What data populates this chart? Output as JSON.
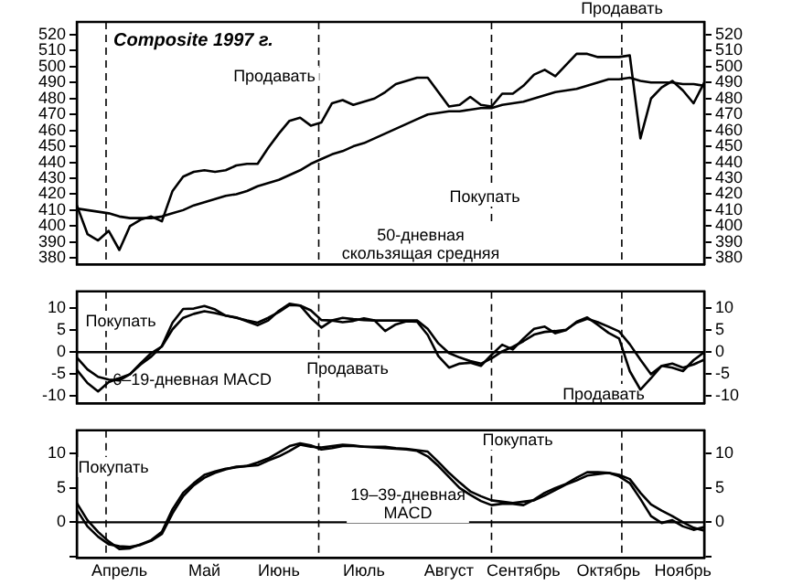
{
  "chart_data": [
    {
      "type": "line",
      "title": "Composite 1997 г.",
      "categories": [
        null,
        null,
        null,
        null,
        null,
        null,
        null,
        null,
        null,
        null,
        null,
        null,
        null,
        null,
        null,
        null,
        null,
        null,
        null,
        null,
        null,
        null,
        null,
        null,
        null,
        null,
        null,
        null,
        null,
        null,
        null,
        null,
        null,
        null,
        null,
        null,
        null,
        null,
        null,
        null,
        null,
        null,
        null,
        null,
        null,
        null,
        null,
        null,
        null,
        null,
        null,
        null,
        null,
        null,
        null,
        null,
        null,
        null,
        null,
        null
      ],
      "series": [
        {
          "color": "#000000",
          "values": [
            413,
            395,
            391,
            397,
            385,
            400,
            404,
            406,
            403,
            422,
            431,
            434,
            435,
            434,
            435,
            438,
            439,
            439,
            449,
            458,
            466,
            468,
            463,
            465,
            477,
            479,
            476,
            478,
            480,
            484,
            489,
            491,
            493,
            493,
            484,
            475,
            476,
            481,
            476,
            475,
            483,
            483,
            488,
            495,
            498,
            494,
            501,
            508,
            508,
            506,
            506,
            506,
            507,
            455,
            480,
            487,
            491,
            485,
            477,
            490
          ]
        },
        {
          "color": "#000000",
          "values": [
            411,
            410,
            409,
            408,
            406,
            405,
            405,
            405,
            406,
            408,
            410,
            413,
            415,
            417,
            419,
            420,
            422,
            425,
            427,
            429,
            432,
            435,
            439,
            442,
            445,
            447,
            450,
            452,
            455,
            458,
            461,
            464,
            467,
            470,
            471,
            472,
            472,
            473,
            474,
            474,
            476,
            477,
            478,
            480,
            482,
            484,
            485,
            486,
            488,
            490,
            492,
            492,
            493,
            491,
            490,
            490,
            490,
            489,
            489,
            488
          ]
        }
      ],
      "ylim": [
        376,
        528
      ],
      "yticks": [
        380,
        390,
        400,
        410,
        420,
        430,
        440,
        450,
        460,
        470,
        480,
        490,
        500,
        510,
        520
      ],
      "y2lim": [
        376,
        528
      ],
      "y2ticks": [
        380,
        390,
        400,
        410,
        420,
        430,
        440,
        450,
        460,
        470,
        480,
        490,
        500,
        510,
        520
      ],
      "tick_labels": "y",
      "legend": false,
      "grid": false,
      "annotations": [
        "Продавать",
        "Покупать",
        "Продавать",
        "50-дневная\nскользящая средняя"
      ]
    },
    {
      "type": "line",
      "categories": [
        null,
        null,
        null,
        null,
        null,
        null,
        null,
        null,
        null,
        null,
        null,
        null,
        null,
        null,
        null,
        null,
        null,
        null,
        null,
        null,
        null,
        null,
        null,
        null,
        null,
        null,
        null,
        null,
        null,
        null,
        null,
        null,
        null,
        null,
        null,
        null,
        null,
        null,
        null,
        null,
        null,
        null,
        null,
        null,
        null,
        null,
        null,
        null,
        null,
        null,
        null,
        null,
        null,
        null,
        null,
        null,
        null,
        null,
        null,
        null
      ],
      "series": [
        {
          "color": "#000000",
          "values": [
            -4,
            -7,
            -8.9,
            -6.8,
            -5.9,
            -5,
            -2.8,
            -1,
            1.4,
            6.7,
            9.8,
            9.9,
            10.5,
            9.7,
            8.3,
            7.9,
            7,
            6.1,
            7.2,
            9.4,
            11,
            10.6,
            7.8,
            5.6,
            7.2,
            6.8,
            7.1,
            7.7,
            7.2,
            4.8,
            6.3,
            7,
            6.9,
            3.9,
            -0.9,
            -3.5,
            -2.6,
            -2.4,
            -3.1,
            -0.6,
            1.7,
            0.6,
            3.1,
            5.3,
            5.8,
            4.3,
            5,
            6.9,
            7.9,
            6.2,
            4.4,
            3.1,
            -4.3,
            -8.5,
            -5.9,
            -3.1,
            -3.5,
            -4.3,
            -1.8,
            0
          ]
        },
        {
          "color": "#000000",
          "values": [
            -1.2,
            -3.9,
            -5.6,
            -6.2,
            -6.4,
            -5,
            -2.5,
            -0.2,
            1.3,
            5.2,
            7.8,
            8.7,
            9.3,
            8.9,
            8.3,
            7.8,
            7.2,
            6.7,
            7.8,
            9.1,
            10.7,
            10.6,
            9.5,
            7.3,
            7.2,
            7.8,
            7.5,
            7.3,
            7.2,
            7.2,
            7.2,
            7.2,
            7.2,
            5.3,
            2,
            -0.2,
            -1.2,
            -2,
            -2.6,
            -1.4,
            0.2,
            1.2,
            2.5,
            4,
            4.6,
            4.8,
            5.1,
            6.7,
            7.6,
            6.8,
            5.8,
            4.7,
            1.8,
            -1.7,
            -5,
            -3.1,
            -2.6,
            -3.5,
            -2.8,
            -1.7
          ]
        }
      ],
      "ylim": [
        -11.6,
        13.8
      ],
      "yticks": [
        -10,
        -5,
        0,
        5,
        10
      ],
      "y2lim": [
        -11.6,
        13.8
      ],
      "y2ticks": [
        -10,
        -5,
        0,
        5,
        10
      ],
      "tick_labels": "y",
      "legend": false,
      "grid": false,
      "ref_lines": [
        {
          "axis": "y",
          "value": 0
        }
      ],
      "annotations": [
        "Покупать",
        "6–19-дневная MACD",
        "Продавать",
        "Продавать"
      ]
    },
    {
      "type": "line",
      "categories": [
        null,
        null,
        null,
        null,
        "Апрель",
        null,
        null,
        null,
        null,
        null,
        null,
        null,
        "Май",
        null,
        null,
        null,
        null,
        null,
        null,
        "Июнь",
        null,
        null,
        null,
        null,
        null,
        null,
        null,
        "Июль",
        null,
        null,
        null,
        null,
        null,
        null,
        null,
        "Август",
        null,
        null,
        null,
        null,
        null,
        null,
        "Сентябрь",
        null,
        null,
        null,
        null,
        null,
        null,
        null,
        "Октябрь",
        null,
        null,
        null,
        null,
        null,
        null,
        "Ноябрь",
        null,
        null
      ],
      "series": [
        {
          "color": "#000000",
          "values": [
            2.8,
            0.3,
            -1.4,
            -2.8,
            -3.9,
            -3.8,
            -3.2,
            -2.6,
            -1.4,
            1.9,
            4.3,
            5.7,
            6.9,
            7.4,
            7.8,
            8,
            8.2,
            8.7,
            9.3,
            10.2,
            11.1,
            11.5,
            11.2,
            10.6,
            10.8,
            11.1,
            11.1,
            11,
            10.9,
            10.8,
            10.7,
            10.6,
            10.4,
            9.6,
            8.2,
            6.6,
            5,
            4,
            3.1,
            2.5,
            2.7,
            2.7,
            2.5,
            3.3,
            4.3,
            5,
            5.6,
            6.5,
            7.3,
            7.3,
            7.2,
            6.7,
            5.7,
            3.4,
            0.9,
            -0.1,
            0.3,
            -0.6,
            -1.1,
            -0.7
          ]
        },
        {
          "color": "#000000",
          "values": [
            1.8,
            -0.6,
            -2.1,
            -3.2,
            -3.5,
            -3.6,
            -3.3,
            -2.7,
            -1.7,
            1.3,
            3.8,
            5.4,
            6.5,
            7.2,
            7.7,
            8.1,
            8.2,
            8.3,
            9,
            9.6,
            10.4,
            11.3,
            11,
            10.9,
            11.1,
            11.3,
            11.2,
            11,
            11,
            11,
            10.8,
            10.7,
            10.5,
            10.3,
            8.8,
            7.2,
            5.8,
            4.5,
            3.8,
            3.2,
            3,
            2.8,
            3,
            3.2,
            3.9,
            4.7,
            5.5,
            6.1,
            6.8,
            7,
            7.2,
            6.9,
            6.3,
            4.3,
            2.6,
            1.7,
            0.9,
            0,
            -0.8,
            -1.2
          ]
        }
      ],
      "ylim": [
        -5.2,
        13.4
      ],
      "yticks": [
        {
          "value": -5,
          "label": null
        },
        0,
        5,
        10
      ],
      "y2lim": [
        -5.2,
        13.4
      ],
      "y2ticks": [
        {
          "value": -5,
          "label": null
        },
        0,
        5,
        10
      ],
      "legend": false,
      "grid": false,
      "ref_lines": [
        {
          "axis": "y",
          "value": 0
        }
      ],
      "annotations": [
        "Покупать",
        "Покупать",
        "19–39-дневная\nMACD"
      ]
    }
  ]
}
